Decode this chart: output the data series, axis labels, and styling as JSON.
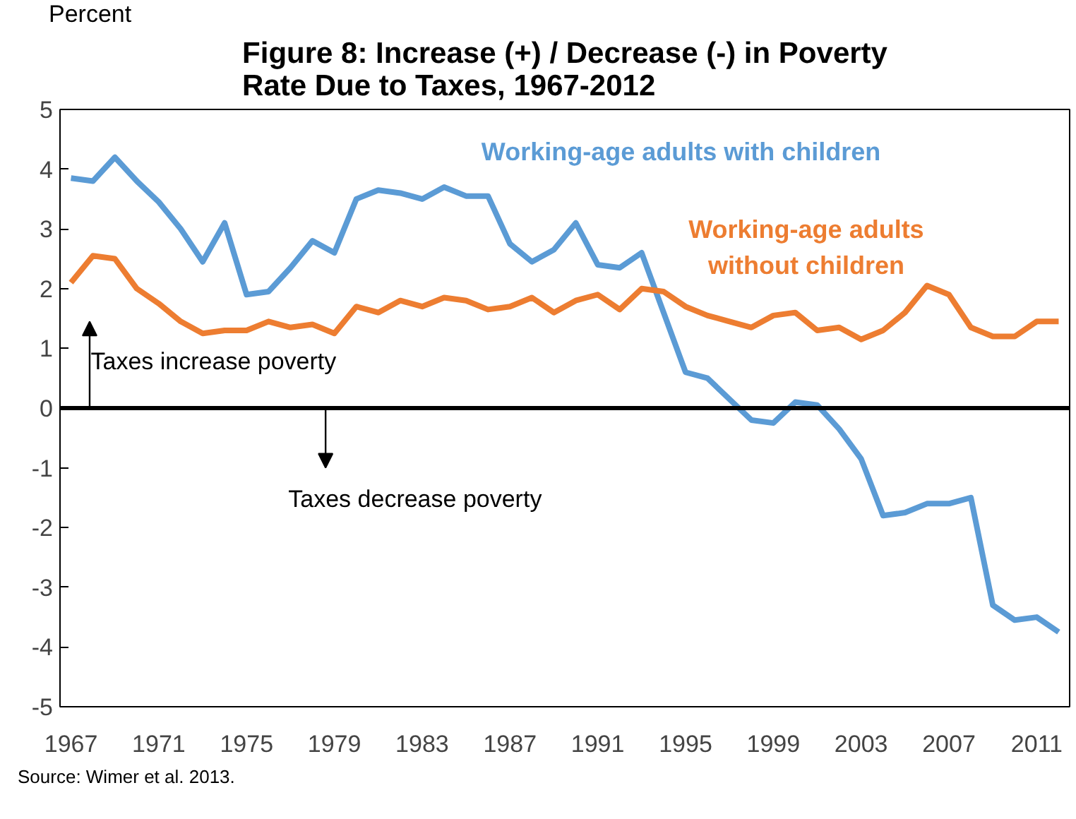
{
  "chart_data": {
    "type": "line",
    "title": "Figure 8: Increase (+) / Decrease (-) in Poverty Rate Due to Taxes, 1967-2012",
    "ylabel": "Percent",
    "categories": [
      "1967",
      null,
      null,
      null,
      "1971",
      null,
      null,
      null,
      "1975",
      null,
      null,
      null,
      "1979",
      null,
      null,
      null,
      "1983",
      null,
      null,
      null,
      "1987",
      null,
      null,
      null,
      "1991",
      null,
      null,
      null,
      "1995",
      null,
      null,
      null,
      "1999",
      null,
      null,
      null,
      "2003",
      null,
      null,
      null,
      "2007",
      null,
      null,
      null,
      "2011",
      null
    ],
    "series": [
      {
        "name": "Working-age adults with children",
        "color": "#5b9bd5",
        "values": [
          3.85,
          3.8,
          4.2,
          3.8,
          3.45,
          3.0,
          2.45,
          3.1,
          1.9,
          1.95,
          2.35,
          2.8,
          2.6,
          3.5,
          3.65,
          3.6,
          3.5,
          3.7,
          3.55,
          3.55,
          2.75,
          2.45,
          2.65,
          3.1,
          2.4,
          2.35,
          2.6,
          1.6,
          0.6,
          0.5,
          0.15,
          -0.2,
          -0.25,
          0.1,
          0.05,
          -0.35,
          -0.85,
          -1.8,
          -1.75,
          -1.6,
          -1.6,
          -1.5,
          -3.3,
          -3.55,
          -3.5,
          -3.75
        ]
      },
      {
        "name": "Working-age adults without children",
        "color": "#ed7d31",
        "values": [
          2.1,
          2.55,
          2.5,
          2.0,
          1.75,
          1.45,
          1.25,
          1.3,
          1.3,
          1.45,
          1.35,
          1.4,
          1.25,
          1.7,
          1.6,
          1.8,
          1.7,
          1.85,
          1.8,
          1.65,
          1.7,
          1.85,
          1.6,
          1.8,
          1.9,
          1.65,
          2.0,
          1.95,
          1.7,
          1.55,
          1.45,
          1.35,
          1.55,
          1.6,
          1.3,
          1.35,
          1.15,
          1.3,
          1.6,
          2.05,
          1.9,
          1.35,
          1.2,
          1.2,
          1.45,
          1.45
        ]
      }
    ],
    "ylim": [
      -5,
      5
    ],
    "yticks": [
      -5,
      -4,
      -3,
      -2,
      -1,
      0,
      1,
      2,
      3,
      4,
      5
    ],
    "ref_lines": [
      {
        "axis": "y",
        "value": 0,
        "color": "#000000"
      }
    ],
    "annotations": [
      "Taxes increase poverty",
      "Taxes decrease poverty",
      "Source: Wimer et al. 2013."
    ],
    "grid": false,
    "legend": false,
    "marker": "none",
    "line_style": "solid"
  }
}
